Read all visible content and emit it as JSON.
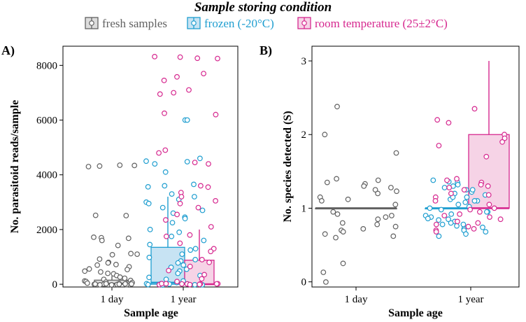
{
  "legend": {
    "title": "Sample storing condition",
    "items": [
      {
        "key": "fresh",
        "label": "fresh samples"
      },
      {
        "key": "frozen",
        "label": "frozen (-20°C)"
      },
      {
        "key": "room",
        "label": "room temperature (25±2°C)"
      }
    ]
  },
  "colors": {
    "fresh": {
      "stroke": "#616161",
      "fill": "#dcdcdc"
    },
    "frozen": {
      "stroke": "#1f9ed0",
      "fill": "#c7e3f3"
    },
    "room": {
      "stroke": "#d6288f",
      "fill": "#f6d3e6"
    }
  },
  "chart_data": [
    {
      "panel": "A)",
      "type": "box",
      "xlabel": "Sample age",
      "ylabel": "No. parasitoid reads/sample",
      "categories": [
        "1 day",
        "1 year"
      ],
      "ylim": [
        -100,
        8700
      ],
      "yticks": [
        0,
        2000,
        4000,
        6000,
        8000
      ],
      "boxes": [
        {
          "category": "1 day",
          "group": "fresh",
          "q1": 0,
          "median": 20,
          "q3": 150,
          "whisker_low": 0,
          "whisker_high": 300
        },
        {
          "category": "1 year",
          "group": "frozen",
          "q1": 0,
          "median": 60,
          "q3": 1350,
          "whisker_low": 0,
          "whisker_high": 3200
        },
        {
          "category": "1 year",
          "group": "room",
          "q1": 0,
          "median": 0,
          "q3": 880,
          "whisker_low": 0,
          "whisker_high": 2000
        }
      ],
      "points": [
        {
          "group": "fresh",
          "category": "1 day",
          "values": [
            4350,
            4340,
            4320,
            4300,
            2520,
            2510,
            1720,
            1700,
            1680,
            1600,
            1420,
            1120,
            1100,
            1080,
            920,
            800,
            780,
            720,
            700,
            640,
            560,
            540,
            480,
            450,
            400,
            380,
            320,
            260,
            220,
            180,
            140,
            120,
            100,
            80,
            60,
            40,
            30,
            20,
            10,
            5,
            0,
            0,
            0,
            0,
            0,
            0,
            0,
            0,
            0,
            0
          ]
        },
        {
          "group": "frozen",
          "category": "1 year",
          "values": [
            6000,
            6000,
            4600,
            4500,
            4480,
            4400,
            4100,
            3650,
            3600,
            3560,
            3300,
            3200,
            3100,
            3000,
            2950,
            2800,
            2700,
            2600,
            2450,
            2400,
            2250,
            2000,
            1900,
            1750,
            1600,
            1450,
            1300,
            1250,
            1100,
            980,
            900,
            850,
            780,
            700,
            620,
            550,
            480,
            400,
            320,
            250,
            180,
            120,
            60,
            20,
            0,
            0,
            0,
            0,
            0,
            0,
            0,
            0
          ]
        },
        {
          "group": "room",
          "category": "1 year",
          "values": [
            8320,
            8300,
            8260,
            8250,
            7700,
            7580,
            7450,
            7100,
            7000,
            6950,
            6250,
            6200,
            4900,
            4800,
            4450,
            4400,
            3600,
            3550,
            3350,
            3200,
            3050,
            2950,
            2800,
            2550,
            2350,
            2100,
            1800,
            1750,
            1500,
            1300,
            1200,
            900,
            800,
            650,
            500,
            350,
            200,
            100,
            0,
            0,
            0,
            0,
            0,
            0,
            0,
            0,
            0,
            0
          ]
        }
      ]
    },
    {
      "panel": "B)",
      "type": "box",
      "xlabel": "Sample age",
      "ylabel": "No. species detected (S)",
      "categories": [
        "1 day",
        "1 year"
      ],
      "ylim": [
        -0.07,
        3.2
      ],
      "yticks": [
        0,
        1,
        2,
        3
      ],
      "boxes": [
        {
          "category": "1 day",
          "group": "fresh",
          "q1": 1,
          "median": 1,
          "q3": 1,
          "whisker_low": 1,
          "whisker_high": 1
        },
        {
          "category": "1 year",
          "group": "frozen",
          "q1": 1,
          "median": 1,
          "q3": 1,
          "whisker_low": 1,
          "whisker_high": 1
        },
        {
          "category": "1 year",
          "group": "room",
          "q1": 1,
          "median": 1,
          "q3": 2,
          "whisker_low": 1,
          "whisker_high": 3
        }
      ],
      "points": [
        {
          "group": "fresh",
          "category": "1 day",
          "values": [
            2.38,
            2.0,
            1.75,
            1.4,
            1.38,
            1.35,
            1.33,
            1.3,
            1.28,
            1.25,
            1.23,
            1.2,
            1.15,
            1.12,
            1.1,
            1.05,
            0.95,
            0.92,
            0.9,
            0.88,
            0.85,
            0.8,
            0.78,
            0.75,
            0.72,
            0.7,
            0.68,
            0.65,
            0.62,
            0.6,
            0.25,
            0.13,
            0.0
          ]
        },
        {
          "group": "frozen",
          "category": "1year",
          "values": [
            1.38,
            1.36,
            1.35,
            1.32,
            1.3,
            1.28,
            1.25,
            1.22,
            1.2,
            1.18,
            1.15,
            1.12,
            1.1,
            1.08,
            1.05,
            1.02,
            1.0,
            0.98,
            0.95,
            0.92,
            0.9,
            0.88,
            0.86,
            0.84,
            0.82,
            0.8,
            0.78,
            0.76,
            0.74,
            0.72,
            0.7,
            0.68,
            0.65,
            0.62,
            0.95,
            1.1,
            1.25,
            0.85,
            1.15,
            0.78
          ]
        },
        {
          "group": "room",
          "category": "1 year",
          "values": [
            2.35,
            2.2,
            2.16,
            2.0,
            1.95,
            1.9,
            1.85,
            1.7,
            1.4,
            1.38,
            1.35,
            1.32,
            1.3,
            1.28,
            1.25,
            1.2,
            1.18,
            1.15,
            1.1,
            1.05,
            1.0,
            0.98,
            0.95,
            0.92,
            0.9,
            0.88,
            0.85,
            0.82,
            0.8,
            0.78,
            0.75,
            0.72,
            0.7,
            0.68
          ]
        }
      ]
    }
  ]
}
